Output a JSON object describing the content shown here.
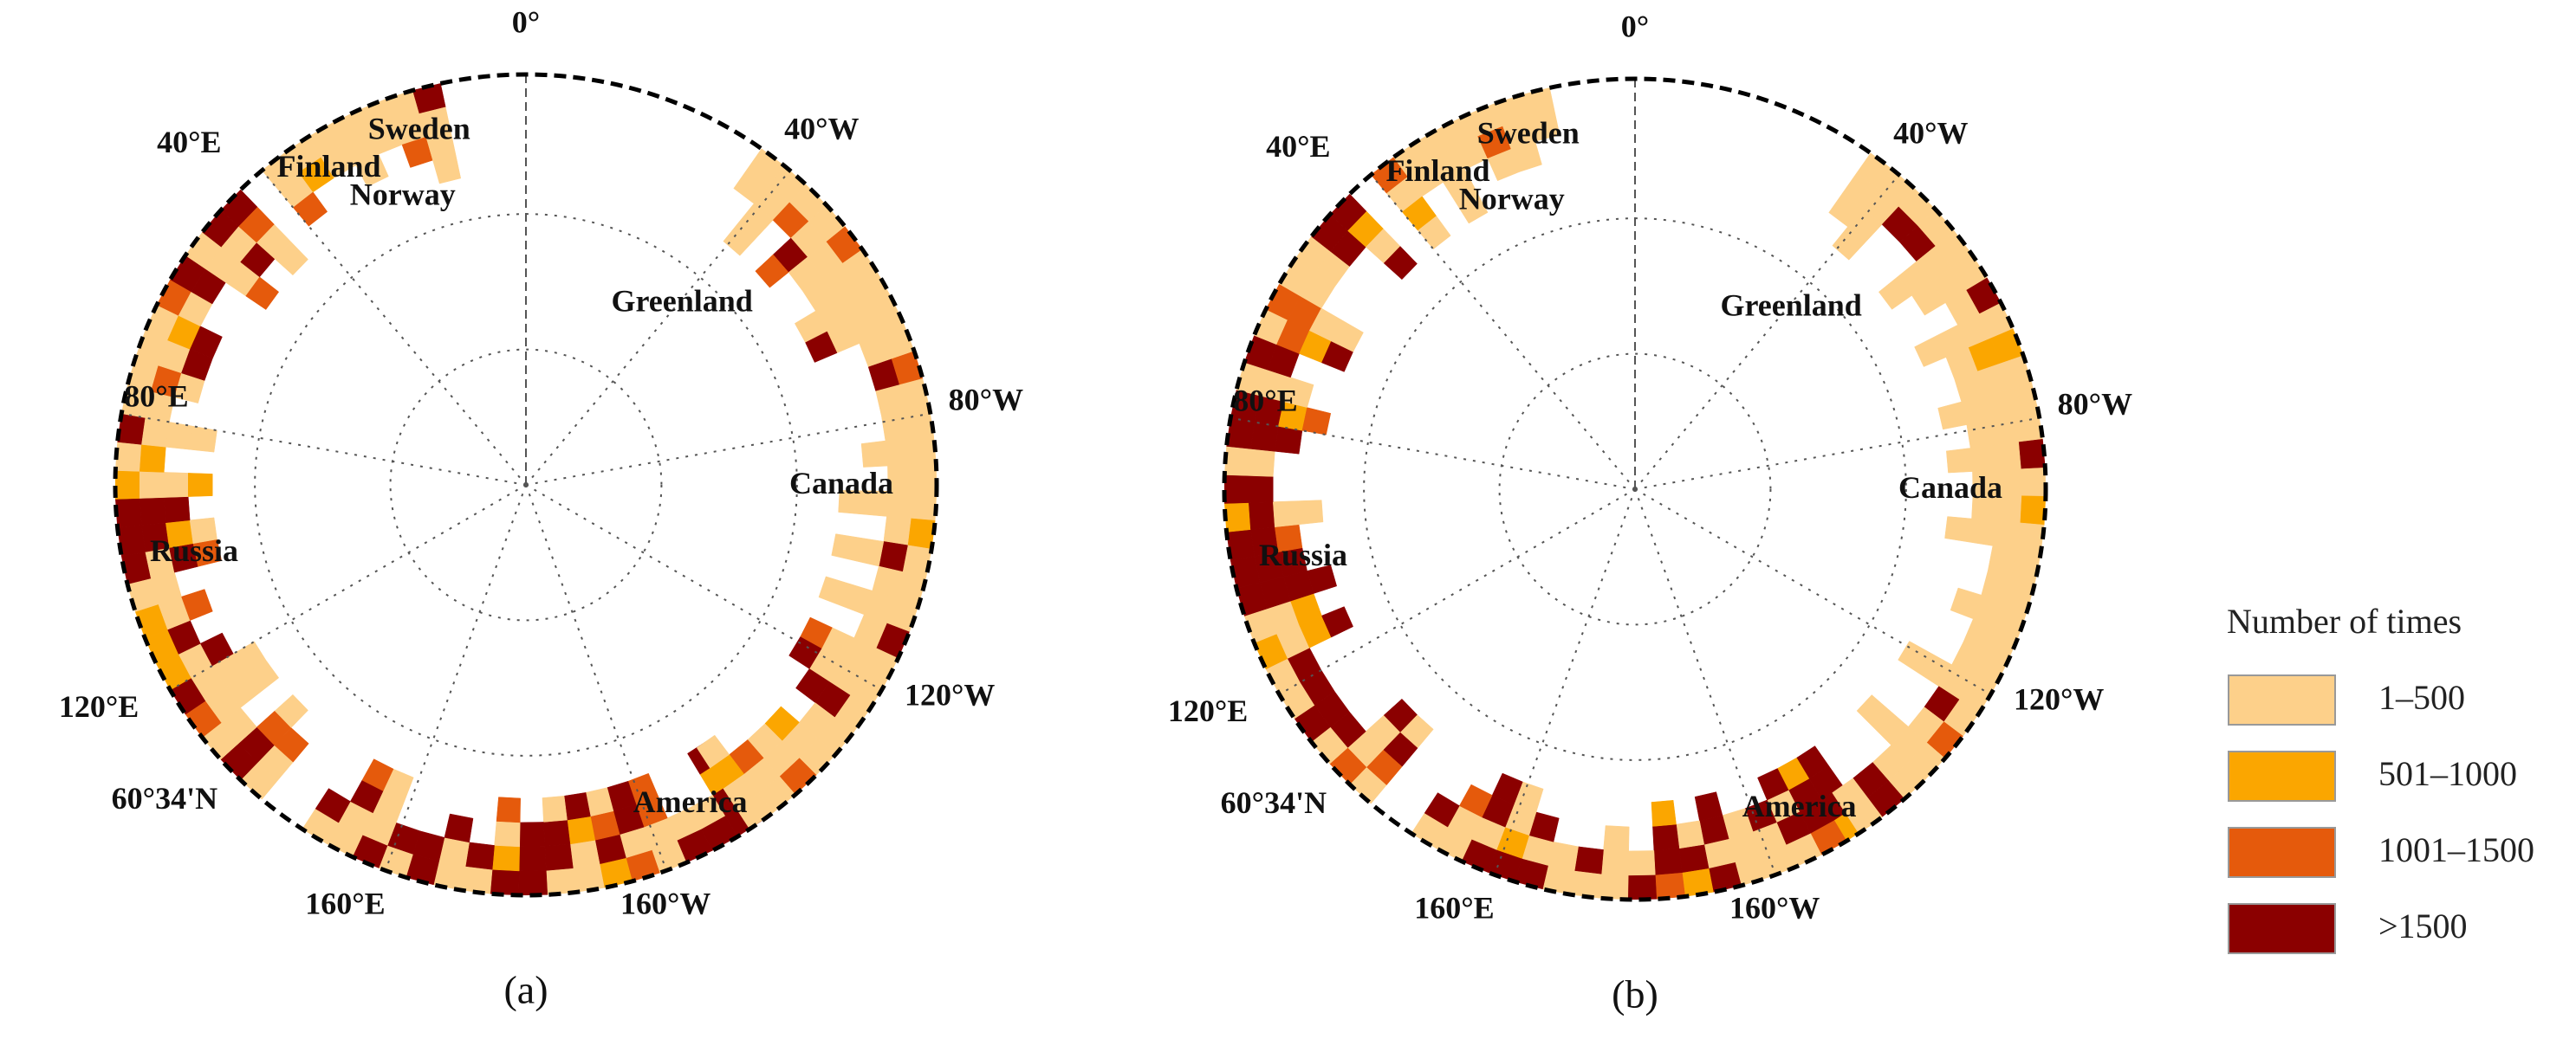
{
  "maps": [
    {
      "caption": "(a)",
      "labels": [
        "0°",
        "40°E",
        "Sweden",
        "Finland",
        "Norway",
        "40°W",
        "Greenland",
        "80°E",
        "80°W",
        "Canada",
        "Russia",
        "120°E",
        "120°W",
        "60°34'N",
        "America",
        "160°E",
        "160°W"
      ]
    },
    {
      "caption": "(b)",
      "labels": [
        "0°",
        "40°E",
        "Sweden",
        "Finland",
        "Norway",
        "40°W",
        "Greenland",
        "80°E",
        "80°W",
        "Canada",
        "Russia",
        "120°E",
        "120°W",
        "60°34'N",
        "America",
        "160°E",
        "160°W"
      ]
    }
  ],
  "legend": {
    "title": "Number of times",
    "items": [
      {
        "label": "1–500",
        "color": "#fdd08a"
      },
      {
        "label": "501–1000",
        "color": "#fba600"
      },
      {
        "label": "1001–1500",
        "color": "#e55a0c"
      },
      {
        "label": ">1500",
        "color": "#8b0000"
      }
    ]
  }
}
